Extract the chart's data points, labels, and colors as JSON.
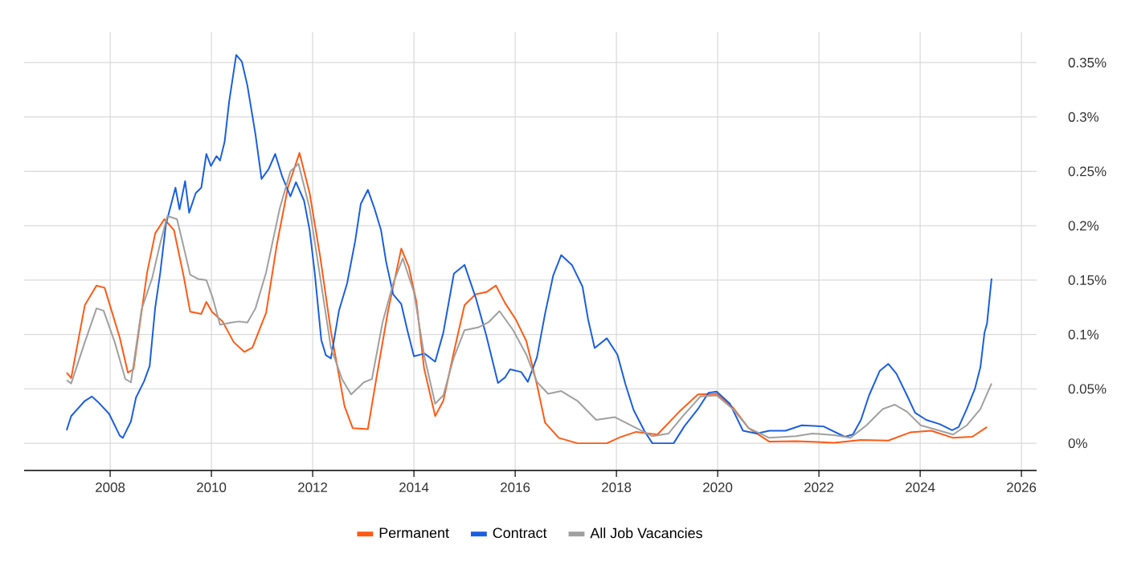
{
  "chart_data": {
    "type": "line",
    "xlim": [
      2006.3,
      2026.3
    ],
    "ylim": [
      -0.025,
      0.378
    ],
    "xticks": [
      2008,
      2010,
      2012,
      2014,
      2016,
      2018,
      2020,
      2022,
      2024,
      2026
    ],
    "yticks": [
      {
        "value": 0,
        "label": "0%"
      },
      {
        "value": 0.05,
        "label": "0.05%"
      },
      {
        "value": 0.1,
        "label": "0.1%"
      },
      {
        "value": 0.15,
        "label": "0.15%"
      },
      {
        "value": 0.2,
        "label": "0.2%"
      },
      {
        "value": 0.25,
        "label": "0.25%"
      },
      {
        "value": 0.3,
        "label": "0.3%"
      },
      {
        "value": 0.35,
        "label": "0.35%"
      }
    ],
    "grid": true,
    "legend": "bottom",
    "series": [
      {
        "name": "Permanent",
        "color": "#ff5a14",
        "x": [
          2007.14,
          2007.23,
          2007.5,
          2007.73,
          2007.89,
          2008.19,
          2008.35,
          2008.46,
          2008.73,
          2008.89,
          2009.07,
          2009.26,
          2009.45,
          2009.58,
          2009.8,
          2009.9,
          2010.01,
          2010.22,
          2010.44,
          2010.65,
          2010.81,
          2011.08,
          2011.29,
          2011.51,
          2011.74,
          2011.94,
          2012.15,
          2012.36,
          2012.63,
          2012.79,
          2013.09,
          2013.27,
          2013.49,
          2013.75,
          2013.9,
          2014.05,
          2014.2,
          2014.42,
          2014.58,
          2014.79,
          2015.0,
          2015.22,
          2015.43,
          2015.62,
          2015.8,
          2016.01,
          2016.22,
          2016.43,
          2016.59,
          2016.86,
          2017.23,
          2017.81,
          2018.07,
          2018.39,
          2018.81,
          2019.24,
          2019.61,
          2019.98,
          2020.3,
          2020.61,
          2021.02,
          2021.55,
          2022.3,
          2022.83,
          2023.37,
          2023.8,
          2024.22,
          2024.65,
          2025.03,
          2025.32
        ],
        "values": [
          0.065,
          0.06,
          0.127,
          0.145,
          0.143,
          0.097,
          0.065,
          0.068,
          0.157,
          0.193,
          0.206,
          0.196,
          0.154,
          0.121,
          0.119,
          0.13,
          0.121,
          0.112,
          0.093,
          0.084,
          0.088,
          0.12,
          0.182,
          0.235,
          0.267,
          0.23,
          0.171,
          0.103,
          0.034,
          0.014,
          0.013,
          0.063,
          0.122,
          0.179,
          0.162,
          0.13,
          0.069,
          0.025,
          0.039,
          0.084,
          0.127,
          0.137,
          0.139,
          0.145,
          0.129,
          0.114,
          0.094,
          0.054,
          0.019,
          0.005,
          0,
          0,
          0.0055,
          0.0105,
          0.008,
          0.029,
          0.045,
          0.0455,
          0.033,
          0.014,
          0.0015,
          0.002,
          0.0005,
          0.003,
          0.0025,
          0.01,
          0.0115,
          0.005,
          0.006,
          0.015
        ]
      },
      {
        "name": "Contract",
        "color": "#1a5fe0",
        "x": [
          2007.14,
          2007.23,
          2007.5,
          2007.64,
          2007.76,
          2007.98,
          2008.19,
          2008.25,
          2008.41,
          2008.51,
          2008.67,
          2008.78,
          2008.89,
          2008.99,
          2009.1,
          2009.29,
          2009.37,
          2009.48,
          2009.56,
          2009.69,
          2009.8,
          2009.9,
          2009.99,
          2010.1,
          2010.17,
          2010.26,
          2010.35,
          2010.49,
          2010.6,
          2010.71,
          2010.87,
          2010.99,
          2011.13,
          2011.26,
          2011.4,
          2011.56,
          2011.67,
          2011.83,
          2011.94,
          2012.04,
          2012.17,
          2012.26,
          2012.36,
          2012.52,
          2012.68,
          2012.84,
          2012.95,
          2013.09,
          2013.22,
          2013.35,
          2013.45,
          2013.59,
          2013.75,
          2013.87,
          2014.0,
          2014.21,
          2014.42,
          2014.58,
          2014.79,
          2015.0,
          2015.22,
          2015.43,
          2015.66,
          2015.8,
          2015.9,
          2016.12,
          2016.25,
          2016.43,
          2016.59,
          2016.75,
          2016.91,
          2017.12,
          2017.33,
          2017.44,
          2017.57,
          2017.81,
          2018.02,
          2018.18,
          2018.34,
          2018.55,
          2018.71,
          2019.13,
          2019.34,
          2019.61,
          2019.82,
          2019.98,
          2020.24,
          2020.5,
          2020.77,
          2021.02,
          2021.34,
          2021.66,
          2022.09,
          2022.51,
          2022.67,
          2022.83,
          2022.99,
          2023.2,
          2023.37,
          2023.53,
          2023.74,
          2023.9,
          2024.12,
          2024.39,
          2024.63,
          2024.76,
          2024.92,
          2025.08,
          2025.19,
          2025.27,
          2025.32,
          2025.41
        ],
        "values": [
          0.012,
          0.025,
          0.039,
          0.043,
          0.038,
          0.027,
          0.007,
          0.005,
          0.02,
          0.042,
          0.057,
          0.071,
          0.125,
          0.157,
          0.201,
          0.235,
          0.215,
          0.241,
          0.212,
          0.23,
          0.235,
          0.266,
          0.255,
          0.264,
          0.26,
          0.277,
          0.314,
          0.357,
          0.351,
          0.329,
          0.284,
          0.243,
          0.252,
          0.266,
          0.245,
          0.227,
          0.24,
          0.223,
          0.196,
          0.157,
          0.095,
          0.081,
          0.078,
          0.122,
          0.147,
          0.186,
          0.22,
          0.233,
          0.216,
          0.196,
          0.167,
          0.137,
          0.128,
          0.104,
          0.08,
          0.0825,
          0.075,
          0.1015,
          0.156,
          0.164,
          0.134,
          0.099,
          0.0555,
          0.0605,
          0.068,
          0.0655,
          0.0565,
          0.079,
          0.119,
          0.154,
          0.173,
          0.164,
          0.144,
          0.114,
          0.0875,
          0.0965,
          0.0815,
          0.054,
          0.0305,
          0.0115,
          0,
          0,
          0.0155,
          0.0315,
          0.0465,
          0.0475,
          0.0365,
          0.0115,
          0.009,
          0.0115,
          0.0115,
          0.0165,
          0.0155,
          0.006,
          0.008,
          0.0215,
          0.044,
          0.0665,
          0.073,
          0.064,
          0.044,
          0.028,
          0.0215,
          0.0175,
          0.012,
          0.015,
          0.0315,
          0.05,
          0.07,
          0.1015,
          0.11,
          0.1515
        ]
      },
      {
        "name": "All Job Vacancies",
        "color": "#a0a0a0",
        "x": [
          2007.14,
          2007.23,
          2007.5,
          2007.73,
          2007.87,
          2008.09,
          2008.3,
          2008.41,
          2008.62,
          2008.83,
          2008.99,
          2009.13,
          2009.32,
          2009.45,
          2009.58,
          2009.74,
          2009.9,
          2010.03,
          2010.17,
          2010.39,
          2010.55,
          2010.71,
          2010.87,
          2011.08,
          2011.35,
          2011.56,
          2011.72,
          2011.94,
          2012.15,
          2012.36,
          2012.58,
          2012.76,
          2013.01,
          2013.17,
          2013.38,
          2013.59,
          2013.78,
          2014.0,
          2014.21,
          2014.42,
          2014.58,
          2014.79,
          2015.0,
          2015.27,
          2015.48,
          2015.69,
          2015.96,
          2016.22,
          2016.43,
          2016.65,
          2016.91,
          2017.23,
          2017.6,
          2017.97,
          2018.29,
          2018.71,
          2019.03,
          2019.34,
          2019.66,
          2019.98,
          2020.3,
          2020.61,
          2021.02,
          2021.55,
          2021.87,
          2022.3,
          2022.62,
          2022.94,
          2023.26,
          2023.5,
          2023.74,
          2024.01,
          2024.39,
          2024.65,
          2024.92,
          2025.19,
          2025.41
        ],
        "values": [
          0.058,
          0.055,
          0.093,
          0.124,
          0.122,
          0.093,
          0.059,
          0.056,
          0.123,
          0.152,
          0.184,
          0.209,
          0.206,
          0.181,
          0.155,
          0.151,
          0.15,
          0.133,
          0.109,
          0.111,
          0.112,
          0.111,
          0.124,
          0.157,
          0.216,
          0.25,
          0.257,
          0.216,
          0.152,
          0.088,
          0.059,
          0.045,
          0.056,
          0.059,
          0.111,
          0.147,
          0.17,
          0.139,
          0.079,
          0.0365,
          0.044,
          0.079,
          0.104,
          0.1065,
          0.1115,
          0.1215,
          0.104,
          0.0815,
          0.0565,
          0.0455,
          0.048,
          0.039,
          0.0215,
          0.024,
          0.0165,
          0.0065,
          0.009,
          0.0265,
          0.043,
          0.044,
          0.0315,
          0.014,
          0.005,
          0.0065,
          0.009,
          0.0075,
          0.005,
          0.0165,
          0.0315,
          0.0355,
          0.029,
          0.0165,
          0.0115,
          0.008,
          0.0165,
          0.0315,
          0.055
        ]
      }
    ]
  }
}
